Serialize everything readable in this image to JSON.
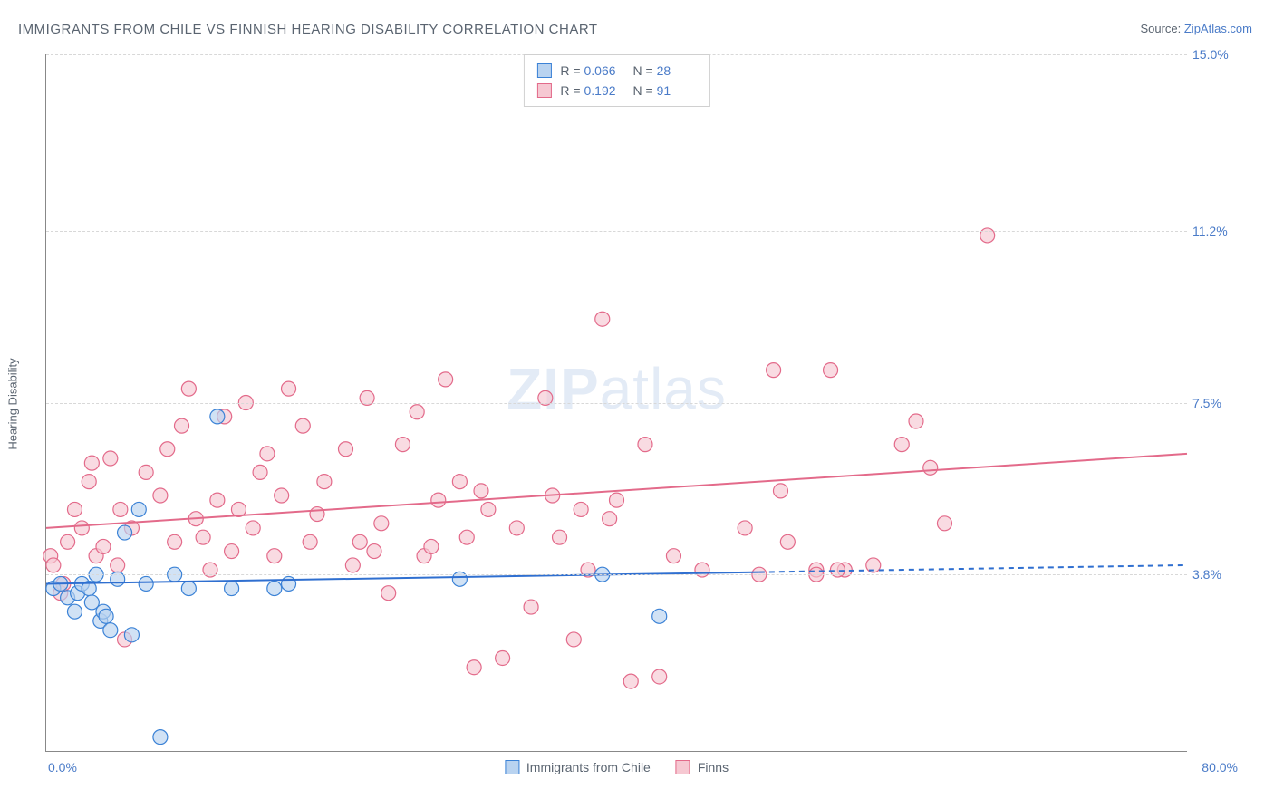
{
  "title": "IMMIGRANTS FROM CHILE VS FINNISH HEARING DISABILITY CORRELATION CHART",
  "source_label": "Source: ",
  "source_name": "ZipAtlas.com",
  "y_axis_label": "Hearing Disability",
  "watermark_bold": "ZIP",
  "watermark_rest": "atlas",
  "chart": {
    "type": "scatter",
    "xlim": [
      0.0,
      80.0
    ],
    "ylim": [
      0.0,
      15.0
    ],
    "y_ticks": [
      3.8,
      7.5,
      11.2,
      15.0
    ],
    "y_tick_labels": [
      "3.8%",
      "7.5%",
      "11.2%",
      "15.0%"
    ],
    "x_tick_left": "0.0%",
    "x_tick_right": "80.0%",
    "grid_color": "#d8d8d8",
    "background_color": "#ffffff",
    "axis_color": "#888888",
    "tick_label_color": "#4a7bc8",
    "marker_radius": 8,
    "marker_stroke_width": 1.2,
    "trend_line_width": 2,
    "series": [
      {
        "id": "chile",
        "label": "Immigrants from Chile",
        "fill": "#b9d3f0",
        "stroke": "#3b82d6",
        "line_color": "#2f6fd0",
        "R": "0.066",
        "N": "28",
        "trend": {
          "y_at_x0": 3.6,
          "y_at_x80": 4.0,
          "solid_until_x": 50.0
        },
        "points": [
          [
            0.5,
            3.5
          ],
          [
            1.0,
            3.6
          ],
          [
            1.5,
            3.3
          ],
          [
            2.0,
            3.0
          ],
          [
            2.2,
            3.4
          ],
          [
            2.5,
            3.6
          ],
          [
            3.0,
            3.5
          ],
          [
            3.2,
            3.2
          ],
          [
            3.5,
            3.8
          ],
          [
            3.8,
            2.8
          ],
          [
            4.0,
            3.0
          ],
          [
            4.2,
            2.9
          ],
          [
            4.5,
            2.6
          ],
          [
            5.0,
            3.7
          ],
          [
            5.5,
            4.7
          ],
          [
            6.0,
            2.5
          ],
          [
            6.5,
            5.2
          ],
          [
            7.0,
            3.6
          ],
          [
            8.0,
            0.3
          ],
          [
            9.0,
            3.8
          ],
          [
            10.0,
            3.5
          ],
          [
            12.0,
            7.2
          ],
          [
            13.0,
            3.5
          ],
          [
            16.0,
            3.5
          ],
          [
            17.0,
            3.6
          ],
          [
            29.0,
            3.7
          ],
          [
            39.0,
            3.8
          ],
          [
            43.0,
            2.9
          ]
        ]
      },
      {
        "id": "finns",
        "label": "Finns",
        "fill": "#f6c8d2",
        "stroke": "#e36a8a",
        "line_color": "#e36a8a",
        "R": "0.192",
        "N": "91",
        "trend": {
          "y_at_x0": 4.8,
          "y_at_x80": 6.4,
          "solid_until_x": 80.0
        },
        "points": [
          [
            0.3,
            4.2
          ],
          [
            0.5,
            4.0
          ],
          [
            1.0,
            3.4
          ],
          [
            1.2,
            3.6
          ],
          [
            1.5,
            4.5
          ],
          [
            2.0,
            5.2
          ],
          [
            2.5,
            4.8
          ],
          [
            3.0,
            5.8
          ],
          [
            3.2,
            6.2
          ],
          [
            3.5,
            4.2
          ],
          [
            4.0,
            4.4
          ],
          [
            4.5,
            6.3
          ],
          [
            5.0,
            4.0
          ],
          [
            5.2,
            5.2
          ],
          [
            5.5,
            2.4
          ],
          [
            6.0,
            4.8
          ],
          [
            7.0,
            6.0
          ],
          [
            8.0,
            5.5
          ],
          [
            8.5,
            6.5
          ],
          [
            9.0,
            4.5
          ],
          [
            9.5,
            7.0
          ],
          [
            10.0,
            7.8
          ],
          [
            10.5,
            5.0
          ],
          [
            11.0,
            4.6
          ],
          [
            11.5,
            3.9
          ],
          [
            12.0,
            5.4
          ],
          [
            12.5,
            7.2
          ],
          [
            13.0,
            4.3
          ],
          [
            13.5,
            5.2
          ],
          [
            14.0,
            7.5
          ],
          [
            14.5,
            4.8
          ],
          [
            15.0,
            6.0
          ],
          [
            15.5,
            6.4
          ],
          [
            16.0,
            4.2
          ],
          [
            16.5,
            5.5
          ],
          [
            17.0,
            7.8
          ],
          [
            18.0,
            7.0
          ],
          [
            18.5,
            4.5
          ],
          [
            19.0,
            5.1
          ],
          [
            19.5,
            5.8
          ],
          [
            21.0,
            6.5
          ],
          [
            21.5,
            4.0
          ],
          [
            22.0,
            4.5
          ],
          [
            22.5,
            7.6
          ],
          [
            23.0,
            4.3
          ],
          [
            23.5,
            4.9
          ],
          [
            24.0,
            3.4
          ],
          [
            25.0,
            6.6
          ],
          [
            26.0,
            7.3
          ],
          [
            26.5,
            4.2
          ],
          [
            27.0,
            4.4
          ],
          [
            27.5,
            5.4
          ],
          [
            28.0,
            8.0
          ],
          [
            29.0,
            5.8
          ],
          [
            29.5,
            4.6
          ],
          [
            30.0,
            1.8
          ],
          [
            30.5,
            5.6
          ],
          [
            31.0,
            5.2
          ],
          [
            32.0,
            2.0
          ],
          [
            33.0,
            4.8
          ],
          [
            34.0,
            3.1
          ],
          [
            35.0,
            7.6
          ],
          [
            35.5,
            5.5
          ],
          [
            36.0,
            4.6
          ],
          [
            37.0,
            2.4
          ],
          [
            37.5,
            5.2
          ],
          [
            38.0,
            3.9
          ],
          [
            39.0,
            9.3
          ],
          [
            39.5,
            5.0
          ],
          [
            40.0,
            5.4
          ],
          [
            41.0,
            1.5
          ],
          [
            42.0,
            6.6
          ],
          [
            43.0,
            1.6
          ],
          [
            44.0,
            4.2
          ],
          [
            46.0,
            3.9
          ],
          [
            49.0,
            4.8
          ],
          [
            51.0,
            8.2
          ],
          [
            51.5,
            5.6
          ],
          [
            52.0,
            4.5
          ],
          [
            54.0,
            3.9
          ],
          [
            55.0,
            8.2
          ],
          [
            56.0,
            3.9
          ],
          [
            58.0,
            4.0
          ],
          [
            60.0,
            6.6
          ],
          [
            61.0,
            7.1
          ],
          [
            62.0,
            6.1
          ],
          [
            63.0,
            4.9
          ],
          [
            66.0,
            11.1
          ],
          [
            54.0,
            3.8
          ],
          [
            55.5,
            3.9
          ],
          [
            50.0,
            3.8
          ]
        ]
      }
    ]
  }
}
